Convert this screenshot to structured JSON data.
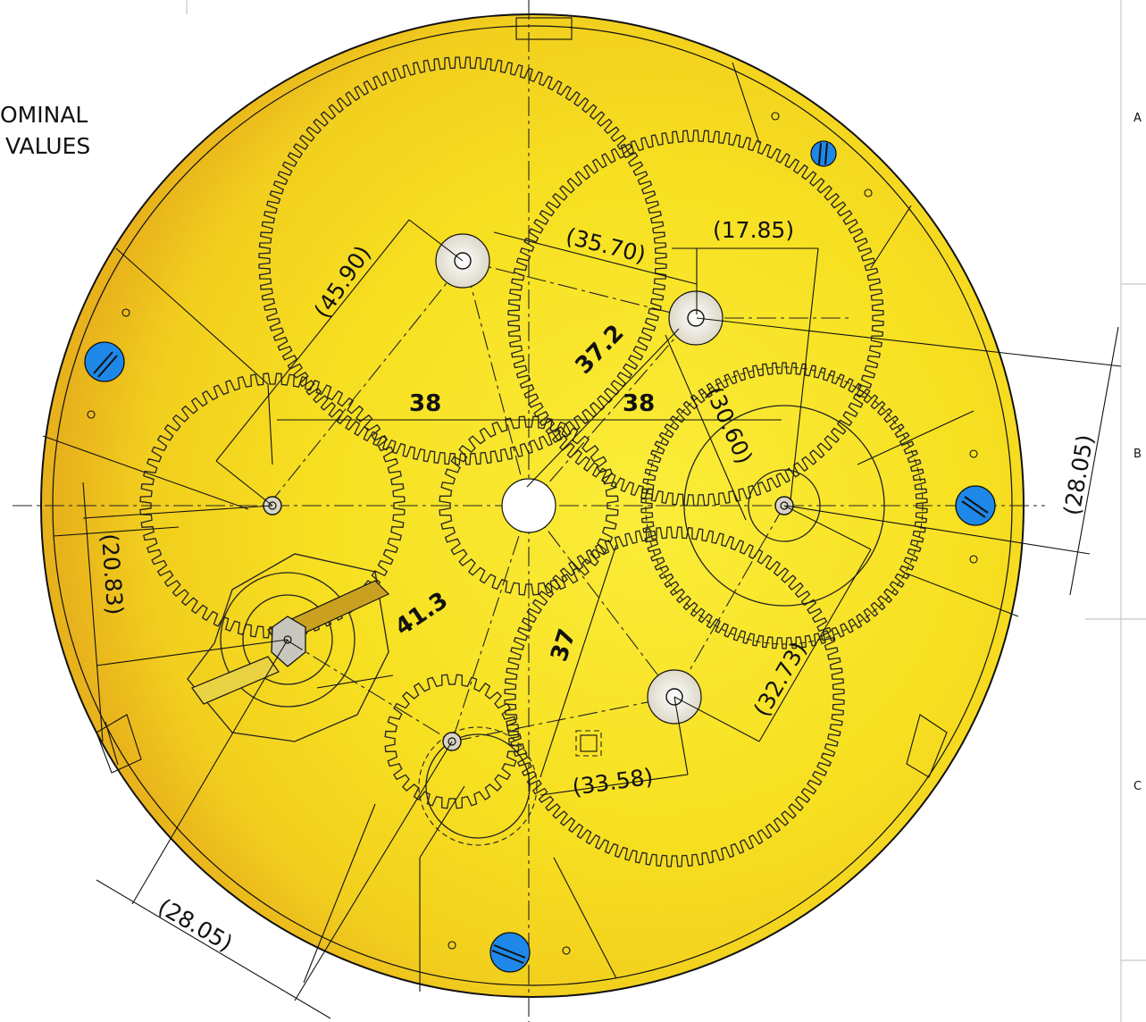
{
  "note": {
    "line1": "OMINAL",
    "line2": "VALUES"
  },
  "zones": [
    "A",
    "B",
    "C"
  ],
  "colors": {
    "plate": "#f7e321",
    "plate_shade": "#e6b81e",
    "screw": "#1e88e8",
    "outline": "#111111",
    "background": "#ffffff"
  },
  "dimensions": {
    "d1": "(45.90)",
    "d2": "(35.70)",
    "d3": "(17.85)",
    "d4": "37.2",
    "d5": "38",
    "d6": "38",
    "d7": "(30.60)",
    "d8": "(28.05)",
    "d9": "(20.83)",
    "d10": "41.3",
    "d11": "37",
    "d12": "(32.73)",
    "d13": "(33.58)",
    "d14": "(28.05)"
  }
}
